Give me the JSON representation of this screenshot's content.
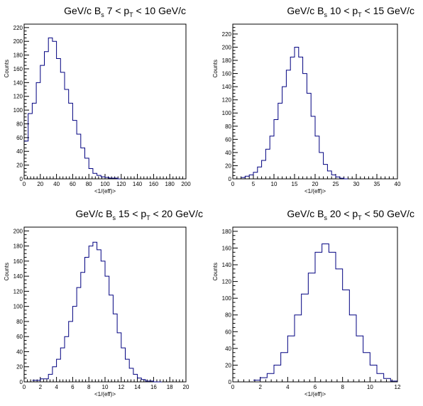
{
  "chart_data": [
    {
      "type": "line",
      "title": "GeV/c B_s 7 < p_T < 10 GeV/c",
      "title_parts": [
        "GeV/c B",
        "s",
        " 7 < p",
        "T",
        " < 10 GeV/c"
      ],
      "xlabel": "<1/(eff)>",
      "ylabel": "Counts",
      "xlim": [
        0,
        200
      ],
      "ylim": [
        0,
        225
      ],
      "xticks": [
        0,
        20,
        40,
        60,
        80,
        100,
        120,
        140,
        160,
        180,
        200
      ],
      "yticks": [
        0,
        20,
        40,
        60,
        80,
        100,
        120,
        140,
        160,
        180,
        200,
        220
      ],
      "series": [
        {
          "x": [
            0,
            5,
            10,
            15,
            20,
            25,
            30,
            35,
            40,
            45,
            50,
            55,
            60,
            65,
            70,
            75,
            80,
            85,
            90,
            95,
            100,
            105,
            110,
            115
          ],
          "values": [
            55,
            95,
            110,
            140,
            165,
            185,
            205,
            200,
            175,
            155,
            130,
            110,
            85,
            65,
            45,
            30,
            15,
            8,
            5,
            3,
            2,
            1,
            1,
            0
          ]
        }
      ]
    },
    {
      "type": "line",
      "title": "GeV/c B_s 10 < p_T < 15 GeV/c",
      "title_parts": [
        "GeV/c B",
        "s",
        " 10 < p",
        "T",
        " < 15 GeV/c"
      ],
      "xlabel": "<1/(eff)>",
      "ylabel": "Counts",
      "xlim": [
        0,
        40
      ],
      "ylim": [
        0,
        235
      ],
      "xticks": [
        0,
        5,
        10,
        15,
        20,
        25,
        30,
        35,
        40
      ],
      "yticks": [
        0,
        20,
        40,
        60,
        80,
        100,
        120,
        140,
        160,
        180,
        200,
        220
      ],
      "series": [
        {
          "x": [
            2,
            3,
            4,
            5,
            6,
            7,
            8,
            9,
            10,
            11,
            12,
            13,
            14,
            15,
            16,
            17,
            18,
            19,
            20,
            21,
            22,
            23,
            24,
            25,
            26,
            27
          ],
          "values": [
            2,
            4,
            6,
            10,
            18,
            28,
            45,
            65,
            90,
            115,
            140,
            165,
            185,
            200,
            185,
            160,
            130,
            95,
            65,
            40,
            22,
            12,
            6,
            3,
            1,
            0
          ]
        }
      ]
    },
    {
      "type": "line",
      "title": "GeV/c B_s 15 < p_T < 20 GeV/c",
      "title_parts": [
        "GeV/c B",
        "s",
        " 15 < p",
        "T",
        " < 20 GeV/c"
      ],
      "xlabel": "<1/(eff)>",
      "ylabel": "Counts",
      "xlim": [
        0,
        20
      ],
      "ylim": [
        0,
        205
      ],
      "xticks": [
        0,
        2,
        4,
        6,
        8,
        10,
        12,
        14,
        16,
        18,
        20
      ],
      "yticks": [
        0,
        20,
        40,
        60,
        80,
        100,
        120,
        140,
        160,
        180,
        200
      ],
      "series": [
        {
          "x": [
            1,
            2,
            3,
            3.5,
            4,
            4.5,
            5,
            5.5,
            6,
            6.5,
            7,
            7.5,
            8,
            8.5,
            9,
            9.5,
            10,
            10.5,
            11,
            11.5,
            12,
            12.5,
            13,
            13.5,
            14,
            14.5,
            15,
            16
          ],
          "values": [
            2,
            4,
            10,
            20,
            30,
            45,
            60,
            80,
            100,
            125,
            145,
            165,
            180,
            185,
            175,
            160,
            140,
            115,
            90,
            65,
            45,
            30,
            18,
            10,
            5,
            3,
            1,
            0
          ]
        }
      ]
    },
    {
      "type": "line",
      "title": "GeV/c B_s 20 < p_T < 50 GeV/c",
      "title_parts": [
        "GeV/c B",
        "s",
        " 20 < p",
        "T",
        " < 50 GeV/c"
      ],
      "xlabel": "<1/(eff)>",
      "ylabel": "Counts",
      "xlim": [
        0,
        12
      ],
      "ylim": [
        0,
        185
      ],
      "xticks": [
        0,
        2,
        4,
        6,
        8,
        10,
        12
      ],
      "yticks": [
        0,
        20,
        40,
        60,
        80,
        100,
        120,
        140,
        160,
        180
      ],
      "series": [
        {
          "x": [
            1.5,
            2,
            2.5,
            3,
            3.5,
            4,
            4.5,
            5,
            5.5,
            6,
            6.5,
            7,
            7.5,
            8,
            8.5,
            9,
            9.5,
            10,
            10.5,
            11,
            11.5
          ],
          "values": [
            2,
            5,
            10,
            20,
            35,
            55,
            80,
            105,
            130,
            155,
            165,
            155,
            135,
            110,
            80,
            55,
            35,
            20,
            10,
            4,
            1
          ]
        }
      ]
    }
  ]
}
